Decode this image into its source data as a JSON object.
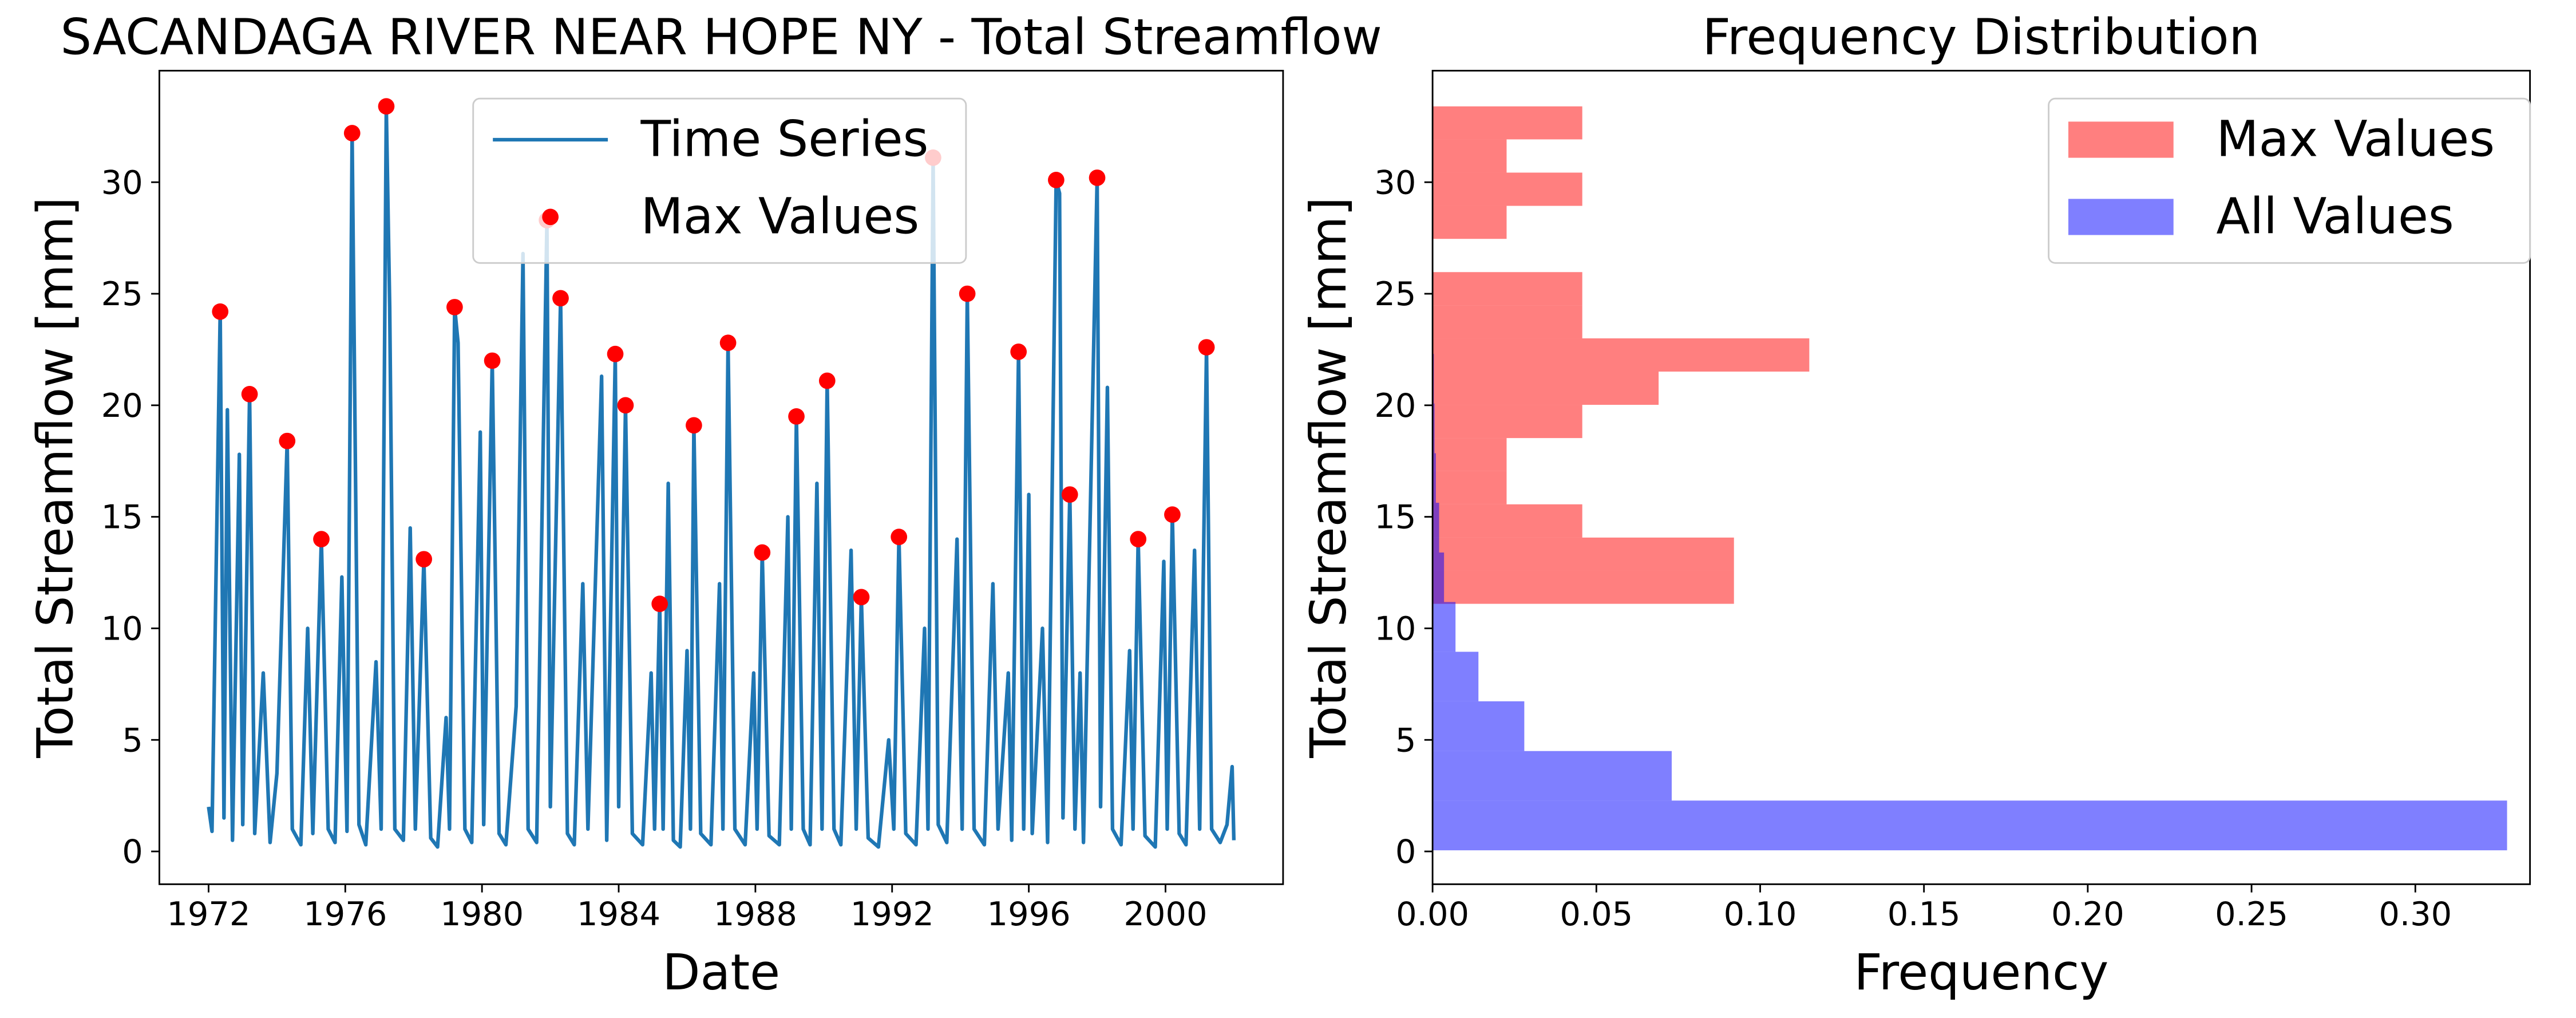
{
  "chart_data": [
    {
      "type": "line",
      "title": "SACANDAGA RIVER NEAR HOPE NY - Total Streamflow",
      "xlabel": "Date",
      "ylabel": "Total Streamflow [mm]",
      "xlim": [
        1970.56,
        2003.44
      ],
      "ylim": [
        -1.47,
        35.0
      ],
      "xticks": [
        1972,
        1976,
        1980,
        1984,
        1988,
        1992,
        1996,
        2000
      ],
      "yticks": [
        0,
        5,
        10,
        15,
        20,
        25,
        30
      ],
      "legend": "upper right",
      "series": [
        {
          "name": "Time Series",
          "type": "line",
          "color": "#1f77b4",
          "x": [
            1972.0,
            1972.1,
            1972.34,
            1972.45,
            1972.55,
            1972.7,
            1972.9,
            1973.0,
            1973.2,
            1973.35,
            1973.6,
            1973.8,
            1974.0,
            1974.3,
            1974.45,
            1974.7,
            1974.9,
            1975.05,
            1975.3,
            1975.5,
            1975.7,
            1975.9,
            1976.05,
            1976.2,
            1976.4,
            1976.6,
            1976.9,
            1977.05,
            1977.2,
            1977.3,
            1977.45,
            1977.7,
            1977.9,
            1978.05,
            1978.3,
            1978.5,
            1978.7,
            1978.95,
            1979.05,
            1979.2,
            1979.3,
            1979.5,
            1979.7,
            1979.95,
            1980.05,
            1980.3,
            1980.5,
            1980.7,
            1981.0,
            1981.2,
            1981.35,
            1981.6,
            1981.9,
            1982.0,
            1982.3,
            1982.5,
            1982.7,
            1982.95,
            1983.1,
            1983.5,
            1983.65,
            1983.9,
            1984.0,
            1984.2,
            1984.4,
            1984.7,
            1984.95,
            1985.05,
            1985.2,
            1985.3,
            1985.45,
            1985.6,
            1985.8,
            1986.0,
            1986.1,
            1986.2,
            1986.4,
            1986.7,
            1986.95,
            1987.05,
            1987.2,
            1987.4,
            1987.7,
            1987.95,
            1988.05,
            1988.2,
            1988.4,
            1988.7,
            1988.95,
            1989.05,
            1989.2,
            1989.4,
            1989.6,
            1989.8,
            1989.95,
            1990.1,
            1990.3,
            1990.5,
            1990.8,
            1990.95,
            1991.1,
            1991.3,
            1991.6,
            1991.9,
            1992.05,
            1992.2,
            1992.4,
            1992.7,
            1992.95,
            1993.05,
            1993.2,
            1993.35,
            1993.6,
            1993.9,
            1994.05,
            1994.2,
            1994.4,
            1994.7,
            1994.95,
            1995.1,
            1995.4,
            1995.5,
            1995.7,
            1995.85,
            1996.0,
            1996.1,
            1996.4,
            1996.55,
            1996.8,
            1996.9,
            1997.0,
            1997.2,
            1997.35,
            1997.5,
            1997.6,
            1998.0,
            1998.1,
            1998.3,
            1998.45,
            1998.7,
            1998.95,
            1999.05,
            1999.2,
            1999.4,
            1999.7,
            1999.95,
            2000.05,
            2000.2,
            2000.4,
            2000.6,
            2000.85,
            2001.0,
            2001.2,
            2001.35,
            2001.6,
            2001.8,
            2001.95,
            2002.0
          ],
          "values": [
            2.0,
            0.9,
            24.2,
            1.5,
            19.8,
            0.5,
            17.8,
            1.2,
            20.5,
            0.8,
            8.0,
            0.4,
            3.5,
            18.4,
            1.0,
            0.3,
            10.0,
            0.8,
            14.0,
            1.0,
            0.4,
            12.3,
            0.9,
            32.2,
            1.2,
            0.3,
            8.5,
            1.0,
            33.4,
            24.4,
            1.0,
            0.5,
            14.5,
            1.0,
            13.1,
            0.6,
            0.2,
            6.0,
            1.0,
            24.4,
            22.8,
            1.0,
            0.4,
            18.8,
            1.2,
            22.0,
            0.8,
            0.3,
            6.5,
            26.8,
            1.0,
            0.4,
            28.3,
            2.0,
            24.8,
            0.8,
            0.3,
            12.0,
            1.0,
            21.3,
            0.5,
            22.3,
            2.0,
            20.0,
            0.8,
            0.3,
            8.0,
            1.0,
            11.1,
            1.0,
            16.5,
            0.5,
            0.2,
            9.0,
            1.0,
            19.1,
            0.8,
            0.3,
            12.0,
            1.0,
            22.8,
            1.0,
            0.3,
            8.0,
            1.0,
            13.4,
            0.7,
            0.3,
            15.0,
            1.0,
            19.5,
            1.0,
            0.3,
            16.5,
            1.0,
            21.1,
            1.0,
            0.3,
            13.5,
            1.0,
            11.4,
            0.6,
            0.2,
            5.0,
            1.0,
            14.1,
            0.8,
            0.3,
            10.0,
            1.0,
            31.1,
            1.2,
            0.4,
            14.0,
            1.0,
            25.0,
            1.0,
            0.3,
            12.0,
            1.0,
            8.0,
            0.5,
            22.4,
            1.0,
            16.0,
            0.8,
            10.0,
            0.4,
            30.1,
            29.5,
            1.5,
            16.0,
            1.0,
            8.0,
            0.4,
            30.2,
            2.0,
            20.8,
            1.0,
            0.3,
            9.0,
            1.0,
            14.0,
            0.7,
            0.2,
            13.0,
            1.0,
            15.1,
            0.8,
            0.3,
            13.5,
            1.0,
            22.6,
            1.0,
            0.4,
            1.2,
            3.8,
            0.5
          ]
        },
        {
          "name": "Max Values",
          "type": "scatter",
          "color": "#ff0000",
          "x": [
            1972.34,
            1973.2,
            1974.3,
            1975.3,
            1976.2,
            1977.2,
            1978.3,
            1979.2,
            1980.3,
            1981.9,
            1982.3,
            1983.9,
            1984.2,
            1985.2,
            1986.2,
            1987.2,
            1988.2,
            1989.2,
            1990.1,
            1991.1,
            1992.2,
            1993.2,
            1994.2,
            1995.7,
            1996.8,
            1997.2,
            1998.0,
            1999.2,
            2000.2,
            2001.2
          ],
          "values": [
            24.2,
            20.5,
            18.4,
            14.0,
            32.2,
            33.4,
            13.1,
            24.4,
            22.0,
            28.3,
            24.8,
            22.3,
            20.0,
            11.1,
            19.1,
            22.8,
            13.4,
            19.5,
            21.1,
            11.4,
            14.1,
            31.1,
            25.0,
            22.4,
            30.1,
            16.0,
            30.2,
            14.0,
            15.1,
            22.6
          ]
        }
      ]
    },
    {
      "type": "histogram",
      "orientation": "horizontal",
      "title": "Frequency Distribution",
      "xlabel": "Frequency",
      "ylabel": "Total Streamflow [mm]",
      "xlim": [
        0,
        0.335
      ],
      "ylim": [
        -1.47,
        35.0
      ],
      "xticks": [
        {
          "value": 0,
          "label": "0.00"
        },
        {
          "value": 0.05,
          "label": "0.05"
        },
        {
          "value": 0.1,
          "label": "0.10"
        },
        {
          "value": 0.15,
          "label": "0.15"
        },
        {
          "value": 0.2,
          "label": "0.20"
        },
        {
          "value": 0.25,
          "label": "0.25"
        },
        {
          "value": 0.3,
          "label": "0.30"
        }
      ],
      "yticks": [
        0,
        5,
        10,
        15,
        20,
        25,
        30
      ],
      "legend": "upper right",
      "alpha": 0.5,
      "series": [
        {
          "name": "Max Values",
          "color": "#ff0000",
          "bins": [
            11.1,
            12.59,
            14.07,
            15.56,
            17.05,
            18.53,
            20.02,
            21.51,
            23.0,
            24.48,
            25.97,
            27.46,
            28.94,
            30.43,
            31.92,
            33.4
          ],
          "values": [
            0.092,
            0.092,
            0.0457,
            0.0226,
            0.0226,
            0.0457,
            0.069,
            0.115,
            0.0457,
            0.0457,
            0,
            0.0226,
            0.0457,
            0.0226,
            0.0457
          ]
        },
        {
          "name": "All Values",
          "color": "#0000ff",
          "bins": [
            0.05,
            2.28,
            4.5,
            6.73,
            8.95,
            11.18,
            13.4,
            15.63,
            17.85,
            20.08,
            22.3,
            24.53,
            26.75,
            28.98,
            31.2,
            33.43
          ],
          "values": [
            0.328,
            0.073,
            0.028,
            0.014,
            0.007,
            0.0035,
            0.002,
            0.001,
            0.0006,
            0.0004,
            0.0002,
            0.0001,
            0.0001,
            0.0001,
            0.0001
          ]
        }
      ]
    }
  ]
}
